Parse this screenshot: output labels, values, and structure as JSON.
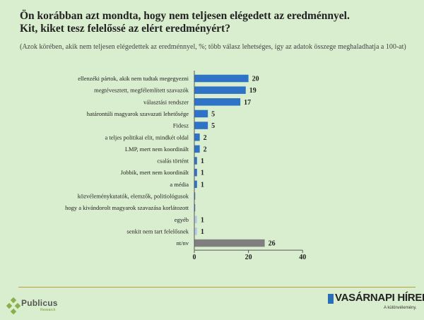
{
  "header": {
    "title_line1": "Ön korábban azt mondta, hogy nem teljesen elégedett az eredménnyel.",
    "title_line2": "Kit, kiket tesz felelőssé az elért eredményért?",
    "subtitle": "(Azok körében, akik nem teljesen elégedettek az eredménnyel, %; több válasz lehetséges, így az adatok összege meghaladhatja a 100-at)"
  },
  "colors": {
    "background": "#d9eecf",
    "bar_primary": "#2f73c6",
    "bar_light": "#b4cbe6",
    "bar_gray": "#7f7f7f",
    "rule": "#b9a03f"
  },
  "chart_data": {
    "type": "bar",
    "orientation": "horizontal",
    "categories": [
      "ellenzéki pártok, akik nem tudtak megegyezni",
      "megtévesztett, megfélemlített szavazók",
      "választási rendszer",
      "határontúli magyarok szavazati lehetősége",
      "Fidesz",
      "a teljes politikai elit, mindkét oldal",
      "LMP, mert nem koordinált",
      "csalás történt",
      "Jobbik, mert nem koordinált",
      "a média",
      "közvéleménykutatók, elemzők, politiológusok",
      "hogy a kivándorolt magyarok szavazása korlátozott",
      "egyéb",
      "senkit nem tart felelősnek",
      "nt/nv"
    ],
    "values": [
      20,
      19,
      17,
      5,
      5,
      2,
      2,
      1,
      1,
      1,
      0.3,
      0.2,
      1,
      1,
      26
    ],
    "value_labels": [
      "20",
      "19",
      "17",
      "5",
      "5",
      "2",
      "2",
      "1",
      "1",
      "1",
      "",
      "",
      "1",
      "1",
      "26"
    ],
    "bar_color_keys": [
      "primary",
      "primary",
      "primary",
      "primary",
      "primary",
      "primary",
      "primary",
      "primary",
      "primary",
      "primary",
      "primary",
      "primary",
      "light",
      "light",
      "gray"
    ],
    "xlim": [
      0,
      40
    ],
    "xticks": [
      "0",
      "20",
      "40"
    ],
    "grid": false,
    "legend": "none"
  },
  "footer": {
    "publicus_name": "Publicus",
    "publicus_sub": "Research",
    "vh_name": "VASÁRNAPI HÍREK",
    "vh_tagline": "A különvélemény."
  }
}
